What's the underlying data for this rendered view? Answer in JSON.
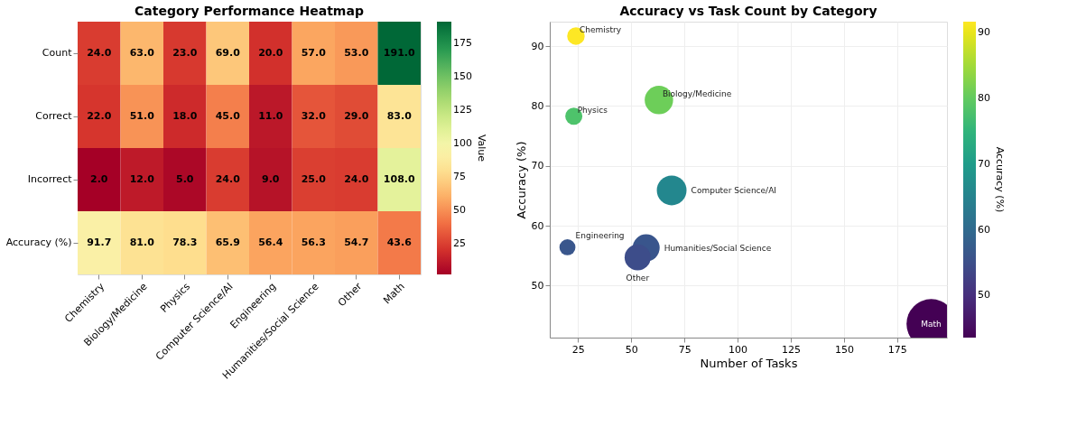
{
  "chart_data": [
    {
      "type": "heatmap",
      "title": "Category Performance Heatmap",
      "clabel": "Value",
      "categories": [
        "Chemistry",
        "Biology/Medicine",
        "Physics",
        "Computer Science/AI",
        "Engineering",
        "Humanities/Social Science",
        "Other",
        "Math"
      ],
      "y_categories": [
        "Count",
        "Correct",
        "Incorrect",
        "Accuracy (%)"
      ],
      "cells": [
        [
          24,
          63,
          23,
          69,
          20,
          57,
          53,
          191
        ],
        [
          22,
          51,
          18,
          45,
          11,
          32,
          29,
          83
        ],
        [
          2,
          12,
          5,
          24,
          9,
          25,
          24,
          108
        ],
        [
          91.7,
          81.0,
          78.3,
          65.9,
          56.4,
          56.3,
          54.7,
          43.6
        ]
      ],
      "cell_labels": [
        [
          "24.0",
          "63.0",
          "23.0",
          "69.0",
          "20.0",
          "57.0",
          "53.0",
          "191.0"
        ],
        [
          "22.0",
          "51.0",
          "18.0",
          "45.0",
          "11.0",
          "32.0",
          "29.0",
          "83.0"
        ],
        [
          "2.0",
          "12.0",
          "5.0",
          "24.0",
          "9.0",
          "25.0",
          "24.0",
          "108.0"
        ],
        [
          "91.7",
          "81.0",
          "78.3",
          "65.9",
          "56.4",
          "56.3",
          "54.7",
          "43.6"
        ]
      ],
      "clim": [
        2,
        191
      ],
      "cticks": [
        25,
        50,
        75,
        100,
        125,
        150,
        175
      ]
    },
    {
      "type": "bubble",
      "title": "Accuracy vs Task Count by Category",
      "xlabel": "Number of Tasks",
      "ylabel": "Accuracy (%)",
      "clabel": "Accuracy (%)",
      "x": [
        24,
        63,
        23,
        69,
        20,
        57,
        53,
        191
      ],
      "values": [
        91.7,
        81.0,
        78.3,
        65.9,
        56.4,
        56.3,
        54.7,
        43.6
      ],
      "sizes": [
        0.126,
        0.33,
        0.12,
        0.361,
        0.105,
        0.298,
        0.277,
        1
      ],
      "cvalues": [
        91.7,
        81.0,
        78.3,
        65.9,
        56.4,
        56.3,
        54.7,
        43.6
      ],
      "clim": [
        43.6,
        91.7
      ],
      "cticks": [
        50,
        60,
        70,
        80,
        90
      ],
      "xlim": [
        11.7,
        198.4
      ],
      "xticks": [
        25,
        50,
        75,
        100,
        125,
        150,
        175
      ],
      "ylim": [
        41.3,
        94.1
      ],
      "yticks": [
        50,
        60,
        70,
        80,
        90
      ],
      "grid": true,
      "annotations": [
        {
          "text": "Chemistry",
          "x": 24,
          "y": 91.7
        },
        {
          "text": "Biology/Medicine",
          "x": 63,
          "y": 81.0
        },
        {
          "text": "Physics",
          "x": 23,
          "y": 78.3
        },
        {
          "text": "Computer Science/AI",
          "x": 69,
          "y": 65.9
        },
        {
          "text": "Engineering",
          "x": 20,
          "y": 56.4
        },
        {
          "text": "Humanities/Social Science",
          "x": 57,
          "y": 56.3
        },
        {
          "text": "Other",
          "x": 53,
          "y": 54.7
        },
        {
          "text": "Math",
          "x": 191,
          "y": 43.6
        }
      ]
    }
  ]
}
